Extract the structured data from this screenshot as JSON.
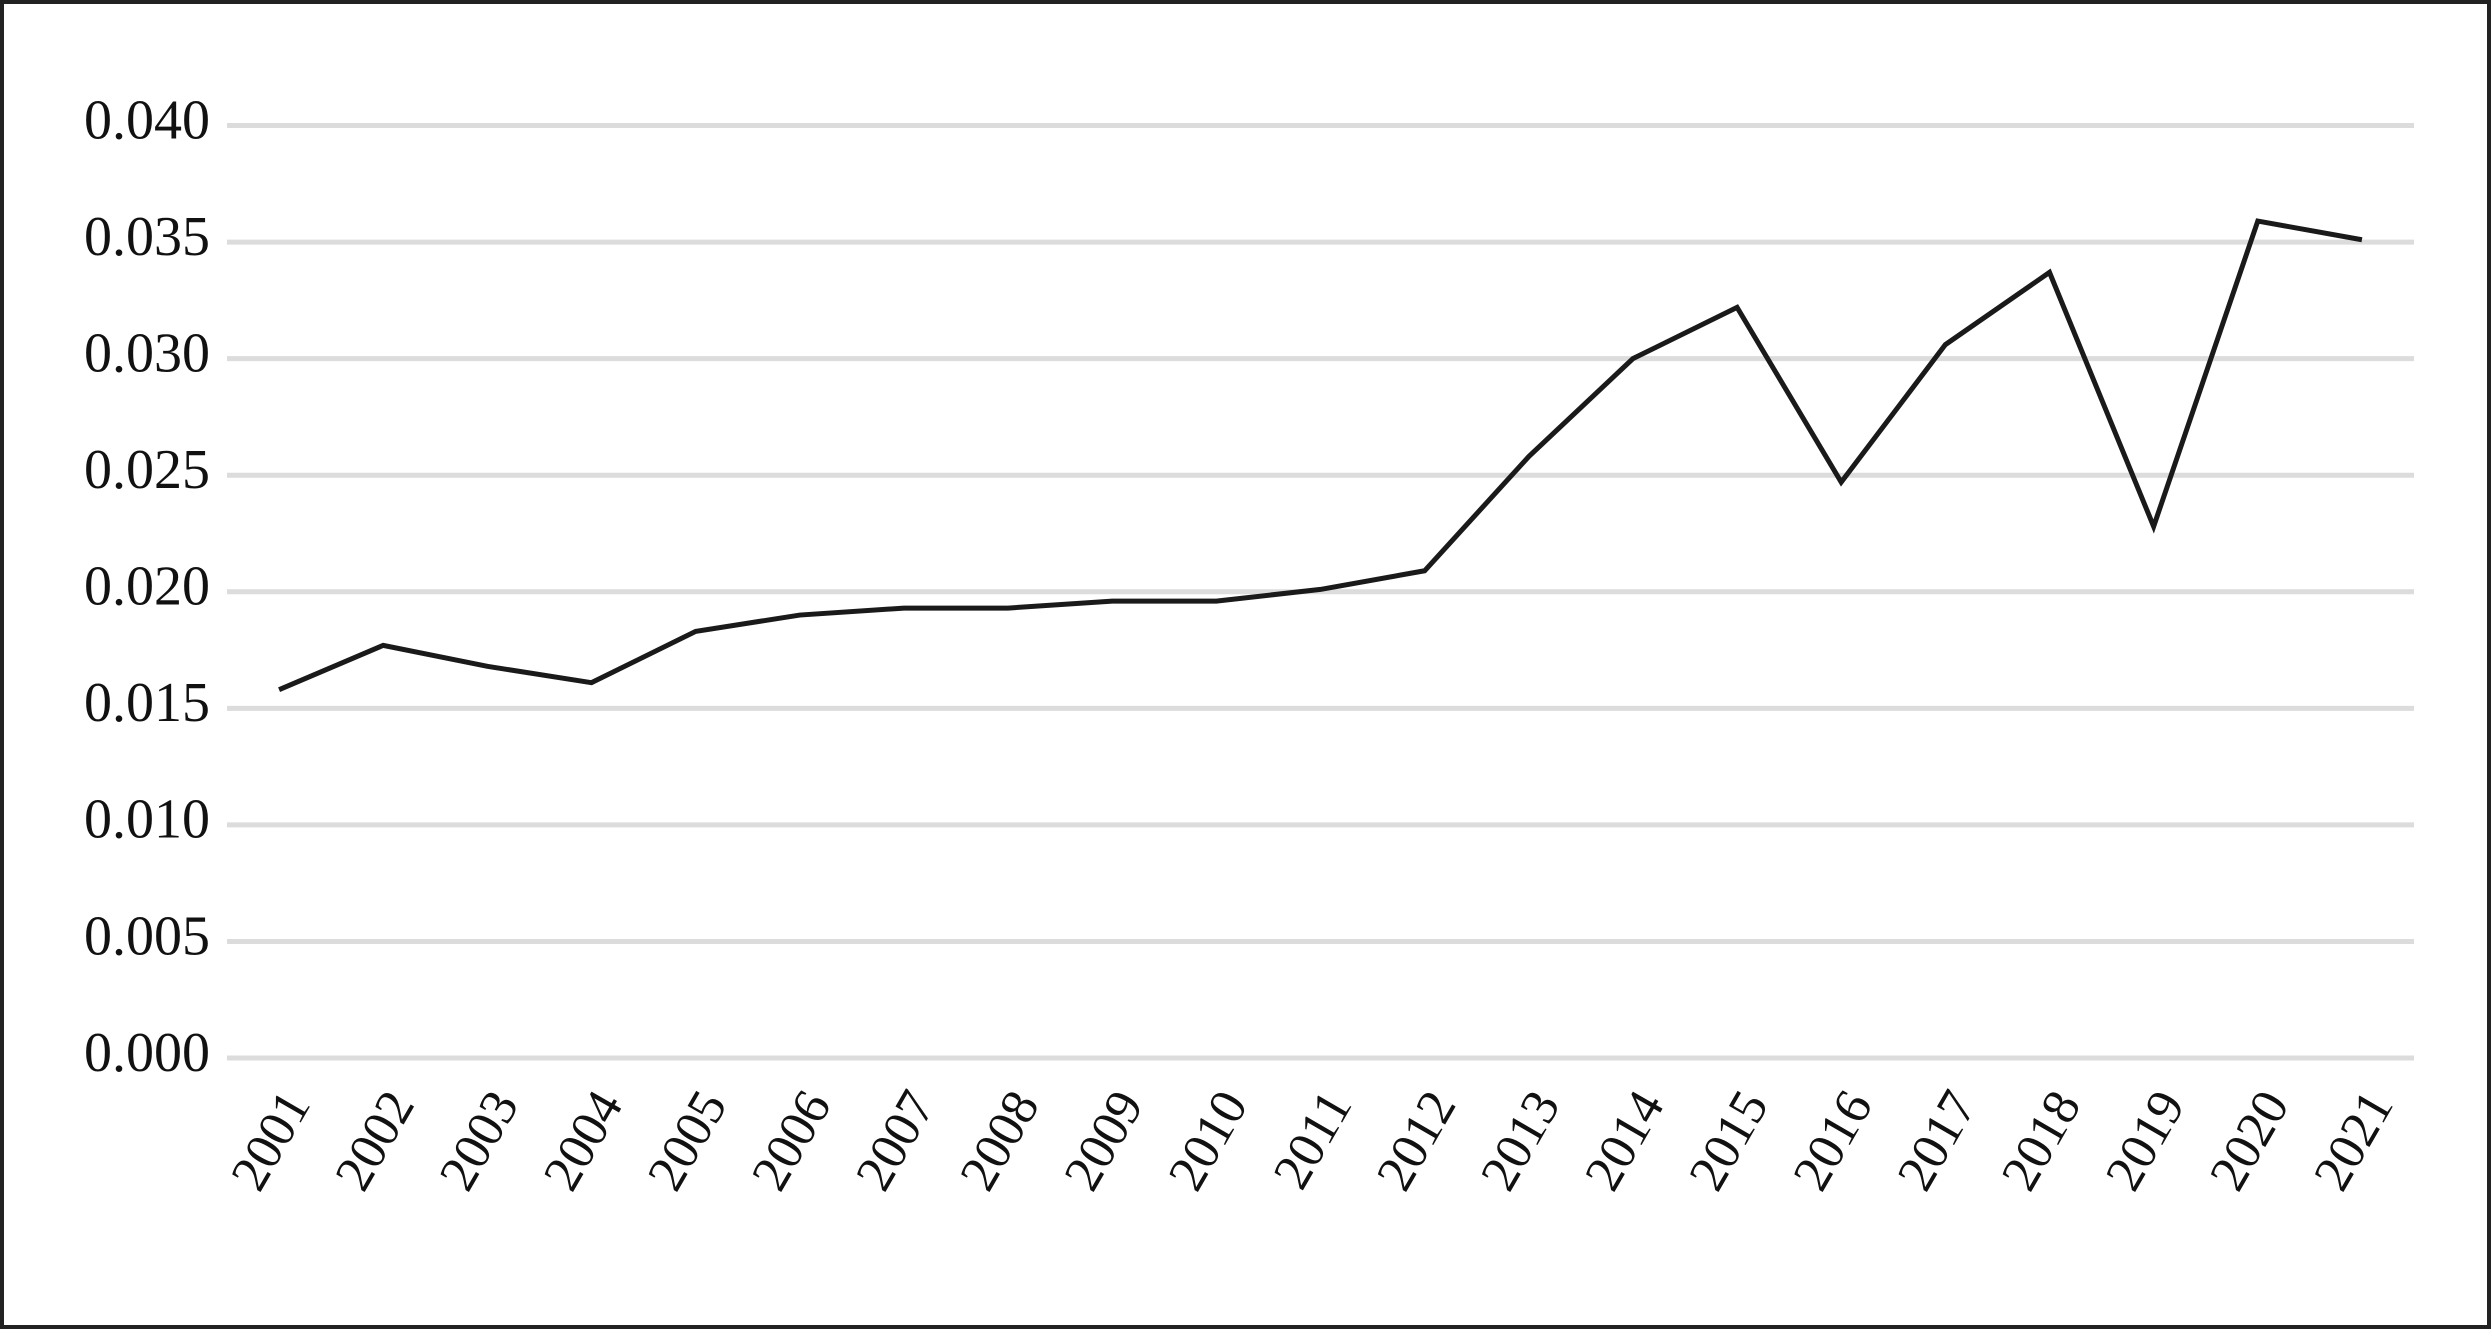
{
  "chart_data": {
    "type": "line",
    "categories": [
      "2001",
      "2002",
      "2003",
      "2004",
      "2005",
      "2006",
      "2007",
      "2008",
      "2009",
      "2010",
      "2011",
      "2012",
      "2013",
      "2014",
      "2015",
      "2016",
      "2017",
      "2018",
      "2019",
      "2020",
      "2021"
    ],
    "series": [
      {
        "color": "#1a1a1a",
        "values": [
          0.0158,
          0.0177,
          0.0168,
          0.0161,
          0.0183,
          0.019,
          0.0193,
          0.0193,
          0.0196,
          0.0196,
          0.0201,
          0.0209,
          0.0258,
          0.03,
          0.0322,
          0.0247,
          0.0306,
          0.0337,
          0.0228,
          0.0359,
          0.0351
        ]
      }
    ],
    "ylim": [
      0,
      0.04
    ],
    "yticks": [
      {
        "value": 0,
        "label": "0.000"
      },
      {
        "value": 0.005,
        "label": "0.005"
      },
      {
        "value": 0.01,
        "label": "0.010"
      },
      {
        "value": 0.015,
        "label": "0.015"
      },
      {
        "value": 0.02,
        "label": "0.020"
      },
      {
        "value": 0.025,
        "label": "0.025"
      },
      {
        "value": 0.03,
        "label": "0.030"
      },
      {
        "value": 0.035,
        "label": "0.035"
      },
      {
        "value": 0.04,
        "label": "0.040"
      }
    ],
    "grid": true
  }
}
